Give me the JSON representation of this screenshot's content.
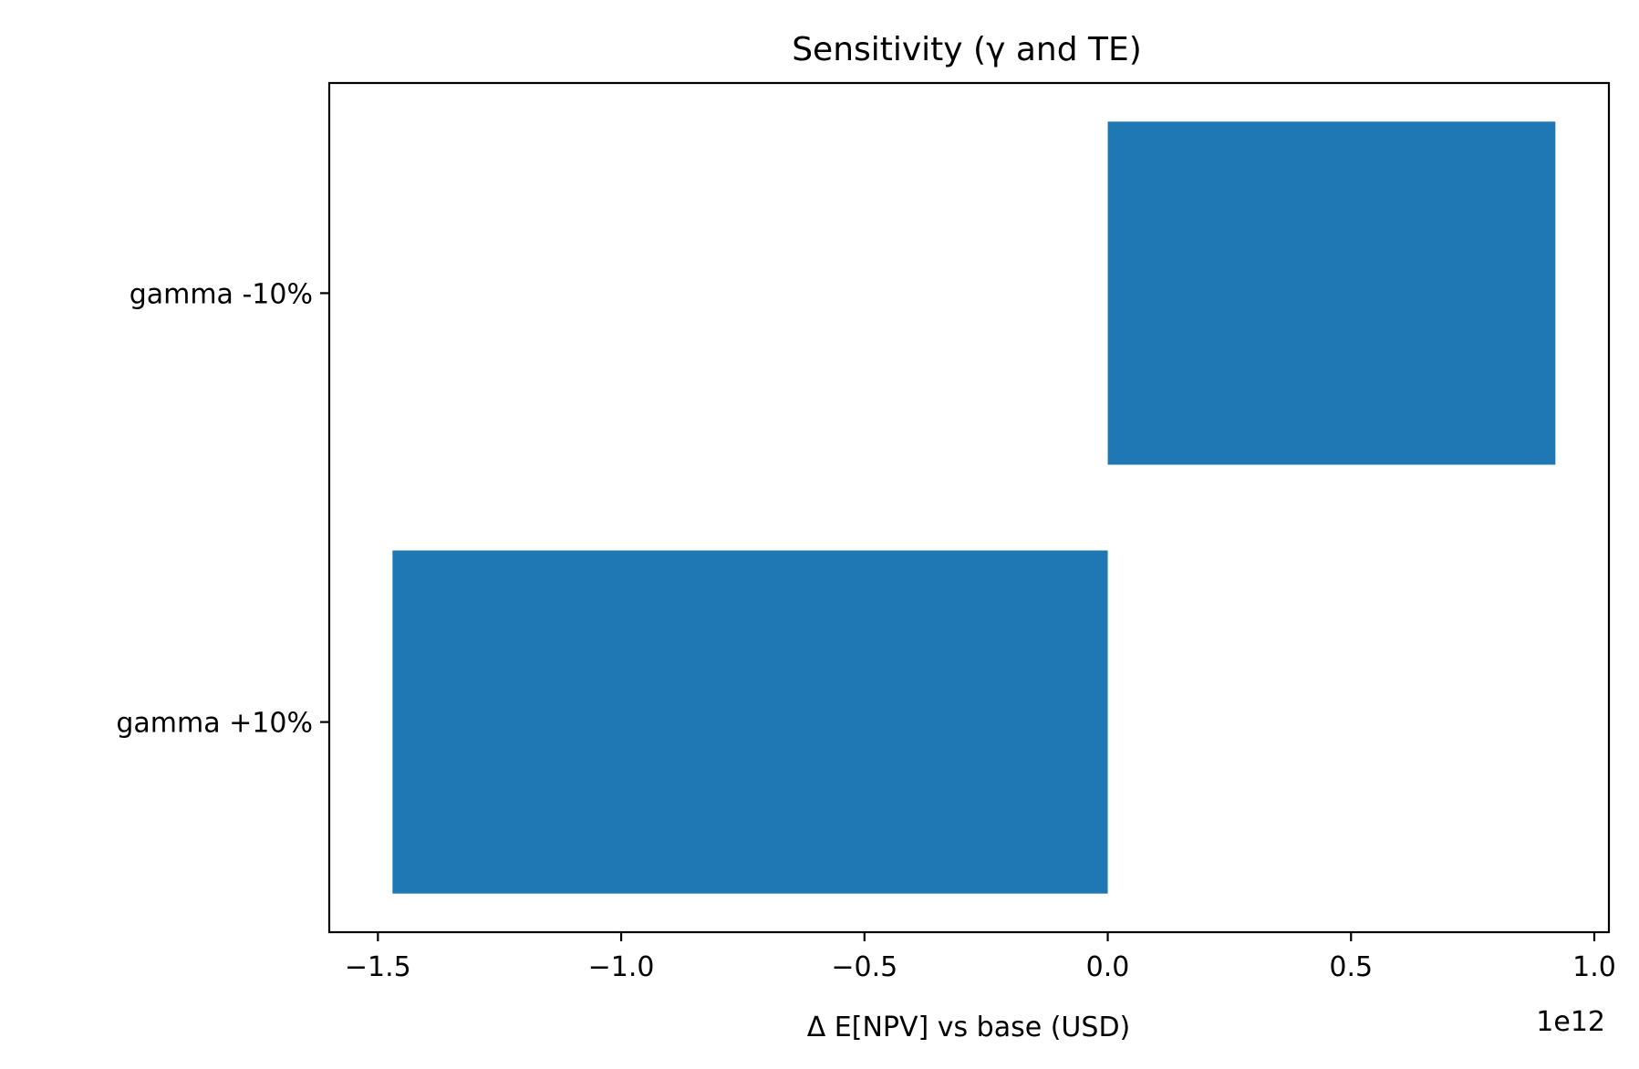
{
  "chart_data": {
    "type": "bar",
    "orientation": "horizontal",
    "title": "Sensitivity (γ and TE)",
    "xlabel": "Δ E[NPV] vs base (USD)",
    "ylabel": "",
    "x_offset_text": "1e12",
    "categories": [
      "gamma +10%",
      "gamma -10%"
    ],
    "values": [
      -1470000000000.0,
      920000000000.0
    ],
    "xlim": [
      -1600000000000.0,
      1030000000000.0
    ],
    "xticks": [
      -1500000000000.0,
      -1000000000000.0,
      -500000000000.0,
      0.0,
      500000000000.0,
      1000000000000.0
    ],
    "xtick_labels": [
      "−1.5",
      "−1.0",
      "−0.5",
      "0.0",
      "0.5",
      "1.0"
    ],
    "grid": false,
    "legend": "none",
    "bar_color": "#1f77b4"
  }
}
